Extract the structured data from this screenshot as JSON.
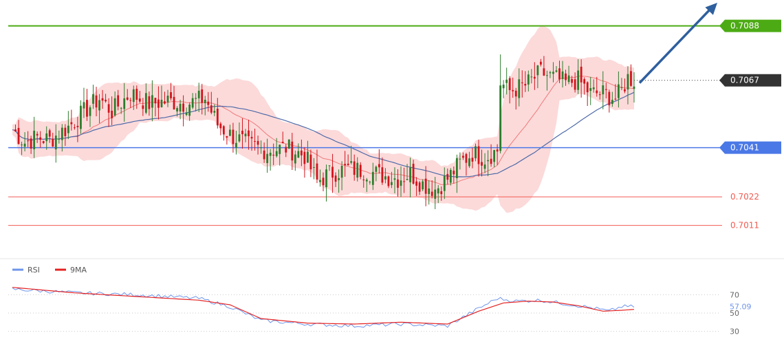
{
  "colors": {
    "background": "#ffffff",
    "resistance": "#4caa14",
    "pivot": "#4a78e6",
    "support": "#f25a50",
    "current_tag": "#333333",
    "arrow": "#2e5f9e",
    "bullish_candle": "#2c7d2c",
    "bearish_candle": "#d0141c",
    "bollinger_fill": "#fbd3d3",
    "moving_average_fast": "#f07a7a",
    "moving_average_slow": "#4e6aa8",
    "rsi_line": "#6e94ea",
    "rsi_ma_line": "#e52020"
  },
  "chart_data": [
    {
      "type": "candlestick",
      "y_range": [
        0.7,
        0.7098
      ],
      "levels": [
        {
          "name": "resistance",
          "value": 0.7088,
          "label": "0.7088"
        },
        {
          "name": "current",
          "value": 0.7067,
          "label": "0.7067"
        },
        {
          "name": "pivot",
          "value": 0.7041,
          "label": "0.7041"
        },
        {
          "name": "support-1",
          "value": 0.7022,
          "label": "0.7022"
        },
        {
          "name": "support-2",
          "value": 0.7011,
          "label": "0.7011"
        }
      ],
      "trend_arrow": {
        "direction": "up",
        "from": 0.7066,
        "to": 0.7098
      },
      "overlays": [
        "bollinger_bands",
        "moving_average_fast",
        "moving_average_slow"
      ],
      "close_path": [
        [
          0,
          0.7048
        ],
        [
          4,
          0.7043
        ],
        [
          8,
          0.7045
        ],
        [
          12,
          0.7044
        ],
        [
          18,
          0.7049
        ],
        [
          24,
          0.7056
        ],
        [
          28,
          0.706
        ],
        [
          32,
          0.7055
        ],
        [
          38,
          0.7062
        ],
        [
          44,
          0.7058
        ],
        [
          50,
          0.7059
        ],
        [
          56,
          0.7058
        ],
        [
          62,
          0.706
        ],
        [
          66,
          0.705
        ],
        [
          70,
          0.7046
        ],
        [
          76,
          0.7042
        ],
        [
          82,
          0.704
        ],
        [
          88,
          0.7041
        ],
        [
          94,
          0.7038
        ],
        [
          98,
          0.7028
        ],
        [
          102,
          0.7031
        ],
        [
          108,
          0.7033
        ],
        [
          114,
          0.7032
        ],
        [
          120,
          0.703
        ],
        [
          124,
          0.7029
        ],
        [
          128,
          0.7031
        ],
        [
          132,
          0.7027
        ],
        [
          136,
          0.7025
        ],
        [
          140,
          0.7029
        ],
        [
          144,
          0.7035
        ],
        [
          148,
          0.7039
        ],
        [
          152,
          0.7037
        ],
        [
          156,
          0.704
        ],
        [
          157,
          0.7066
        ],
        [
          160,
          0.7063
        ],
        [
          165,
          0.7065
        ],
        [
          170,
          0.707
        ],
        [
          174,
          0.7068
        ],
        [
          178,
          0.7066
        ],
        [
          182,
          0.7067
        ],
        [
          186,
          0.7062
        ],
        [
          190,
          0.7062
        ],
        [
          194,
          0.706
        ],
        [
          196,
          0.7063
        ],
        [
          198,
          0.7068
        ],
        [
          200,
          0.7067
        ]
      ]
    },
    {
      "type": "line",
      "title": "RSI",
      "series": [
        {
          "name": "RSI",
          "current_label": "57.09"
        },
        {
          "name": "9MA"
        }
      ],
      "y_ticks": [
        "70",
        "50",
        "30"
      ],
      "y_range": [
        20,
        80
      ],
      "rsi_path": [
        [
          0,
          76
        ],
        [
          20,
          72
        ],
        [
          40,
          70
        ],
        [
          60,
          66
        ],
        [
          70,
          57
        ],
        [
          80,
          42
        ],
        [
          95,
          38
        ],
        [
          110,
          36
        ],
        [
          125,
          38
        ],
        [
          140,
          36
        ],
        [
          150,
          55
        ],
        [
          156,
          66
        ],
        [
          162,
          63
        ],
        [
          170,
          64
        ],
        [
          178,
          60
        ],
        [
          186,
          56
        ],
        [
          192,
          52
        ],
        [
          196,
          57
        ],
        [
          200,
          57
        ]
      ],
      "ma_path": [
        [
          0,
          78
        ],
        [
          20,
          72
        ],
        [
          40,
          68
        ],
        [
          60,
          64
        ],
        [
          70,
          59
        ],
        [
          80,
          44
        ],
        [
          95,
          39
        ],
        [
          110,
          38
        ],
        [
          125,
          40
        ],
        [
          140,
          38
        ],
        [
          150,
          52
        ],
        [
          158,
          61
        ],
        [
          166,
          63
        ],
        [
          174,
          62
        ],
        [
          182,
          58
        ],
        [
          190,
          52
        ],
        [
          196,
          53
        ],
        [
          200,
          54
        ]
      ]
    }
  ]
}
